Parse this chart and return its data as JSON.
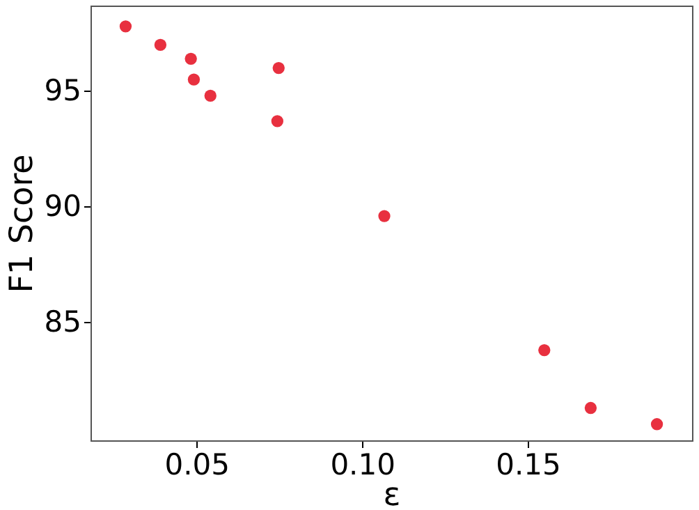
{
  "chart_data": {
    "type": "scatter",
    "xlabel": "ε",
    "ylabel": "F1 Score",
    "x": [
      0.0286,
      0.0391,
      0.0483,
      0.0492,
      0.0542,
      0.0748,
      0.0744,
      0.1067,
      0.155,
      0.169,
      0.189
    ],
    "series": [
      {
        "color": "#e8303f",
        "values": [
          97.8,
          97.0,
          96.4,
          95.5,
          94.8,
          96.0,
          93.7,
          89.6,
          83.8,
          81.3,
          80.6
        ]
      }
    ],
    "xlim": [
      0.018,
      0.1996
    ],
    "ylim": [
      79.9,
      98.7
    ],
    "xticks": [
      0.05,
      {
        "value": 0.1,
        "label": "0.10"
      },
      0.15
    ],
    "yticks": [
      85,
      90,
      95
    ],
    "marker": "circle",
    "grid": false
  }
}
